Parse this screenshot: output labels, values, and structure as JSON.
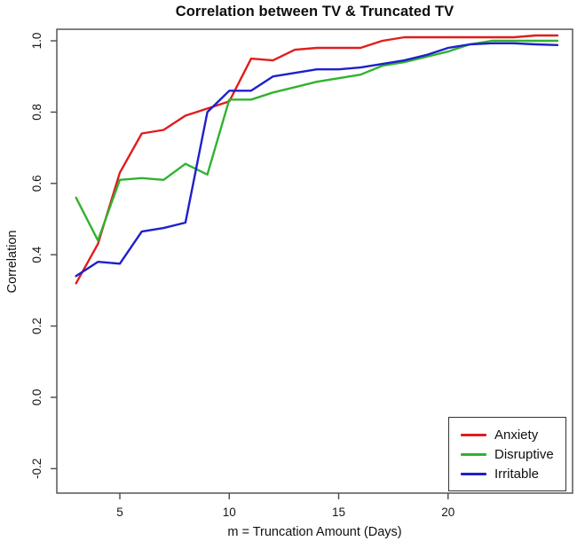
{
  "chart_data": {
    "type": "line",
    "title": "Correlation between TV & Truncated TV",
    "xlabel": "m = Truncation Amount (Days)",
    "ylabel": "Correlation",
    "grid": false,
    "legend_position": "bottom-right",
    "axis_color": "#4a4a4a",
    "text_color": "#161616",
    "xlim": [
      2.1,
      25.7
    ],
    "ylim": [
      -0.23,
      1.03
    ],
    "x_ticks": [
      5,
      10,
      15,
      20
    ],
    "x_tick_labels": [
      "5",
      "10",
      "15",
      "20"
    ],
    "y_ticks": [
      -0.2,
      0.0,
      0.2,
      0.4,
      0.6,
      0.8,
      1.0
    ],
    "y_tick_labels": [
      "-0.2",
      "0.0",
      "0.2",
      "0.4",
      "0.6",
      "0.8",
      "1.0"
    ],
    "x": [
      3,
      4,
      5,
      6,
      7,
      8,
      9,
      10,
      11,
      12,
      13,
      14,
      15,
      16,
      17,
      18,
      19,
      20,
      21,
      22,
      23,
      24,
      25
    ],
    "series": [
      {
        "name": "Anxiety",
        "color": "#e01d1d",
        "values": [
          0.32,
          0.43,
          0.63,
          0.74,
          0.75,
          0.79,
          0.81,
          0.83,
          0.95,
          0.945,
          0.975,
          0.98,
          0.98,
          0.98,
          1.0,
          1.01,
          1.01,
          1.01,
          1.01,
          1.01,
          1.01,
          1.015,
          1.015
        ]
      },
      {
        "name": "Disruptive",
        "color": "#2fb32f",
        "values": [
          0.56,
          0.44,
          0.61,
          0.615,
          0.61,
          0.655,
          0.625,
          0.835,
          0.835,
          0.855,
          0.87,
          0.885,
          0.895,
          0.905,
          0.93,
          0.94,
          0.955,
          0.97,
          0.99,
          1.0,
          1.0,
          1.0,
          1.0
        ]
      },
      {
        "name": "Irritable",
        "color": "#1f1fcc",
        "values": [
          0.34,
          0.38,
          0.375,
          0.465,
          0.475,
          0.49,
          0.8,
          0.86,
          0.86,
          0.9,
          0.91,
          0.92,
          0.92,
          0.925,
          0.935,
          0.945,
          0.96,
          0.98,
          0.99,
          0.993,
          0.993,
          0.99,
          0.988
        ]
      }
    ]
  }
}
